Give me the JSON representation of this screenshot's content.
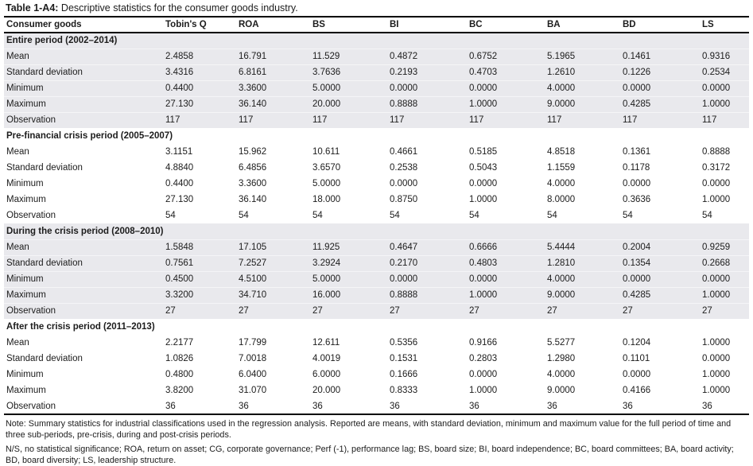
{
  "title": {
    "label": "Table 1-A4:",
    "text": " Descriptive statistics for the consumer goods industry."
  },
  "chart_data": {
    "type": "table",
    "title": "Table 1-A4: Descriptive statistics for the consumer goods industry.",
    "columns": [
      "Consumer goods",
      "Tobin's Q",
      "ROA",
      "BS",
      "BI",
      "BC",
      "BA",
      "BD",
      "LS"
    ],
    "sections": [
      {
        "header": "Entire period (2002–2014)",
        "shaded": true,
        "rows": [
          {
            "label": "Mean",
            "values": [
              "2.4858",
              "16.791",
              "11.529",
              "0.4872",
              "0.6752",
              "5.1965",
              "0.1461",
              "0.9316"
            ]
          },
          {
            "label": "Standard deviation",
            "values": [
              "3.4316",
              "6.8161",
              "3.7636",
              "0.2193",
              "0.4703",
              "1.2610",
              "0.1226",
              "0.2534"
            ]
          },
          {
            "label": "Minimum",
            "values": [
              "0.4400",
              "3.3600",
              "5.0000",
              "0.0000",
              "0.0000",
              "4.0000",
              "0.0000",
              "0.0000"
            ]
          },
          {
            "label": "Maximum",
            "values": [
              "27.130",
              "36.140",
              "20.000",
              "0.8888",
              "1.0000",
              "9.0000",
              "0.4285",
              "1.0000"
            ]
          },
          {
            "label": "Observation",
            "values": [
              "117",
              "117",
              "117",
              "117",
              "117",
              "117",
              "117",
              "117"
            ]
          }
        ]
      },
      {
        "header": "Pre-financial crisis period (2005–2007)",
        "shaded": false,
        "rows": [
          {
            "label": "Mean",
            "values": [
              "3.1151",
              "15.962",
              "10.611",
              "0.4661",
              "0.5185",
              "4.8518",
              "0.1361",
              "0.8888"
            ]
          },
          {
            "label": "Standard deviation",
            "values": [
              "4.8840",
              "6.4856",
              "3.6570",
              "0.2538",
              "0.5043",
              "1.1559",
              "0.1178",
              "0.3172"
            ]
          },
          {
            "label": "Minimum",
            "values": [
              "0.4400",
              "3.3600",
              "5.0000",
              "0.0000",
              "0.0000",
              "4.0000",
              "0.0000",
              "0.0000"
            ]
          },
          {
            "label": "Maximum",
            "values": [
              "27.130",
              "36.140",
              "18.000",
              "0.8750",
              "1.0000",
              "8.0000",
              "0.3636",
              "1.0000"
            ]
          },
          {
            "label": "Observation",
            "values": [
              "54",
              "54",
              "54",
              "54",
              "54",
              "54",
              "54",
              "54"
            ]
          }
        ]
      },
      {
        "header": "During the crisis period (2008–2010)",
        "shaded": true,
        "rows": [
          {
            "label": "Mean",
            "values": [
              "1.5848",
              "17.105",
              "11.925",
              "0.4647",
              "0.6666",
              "5.4444",
              "0.2004",
              "0.9259"
            ]
          },
          {
            "label": "Standard deviation",
            "values": [
              "0.7561",
              "7.2527",
              "3.2924",
              "0.2170",
              "0.4803",
              "1.2810",
              "0.1354",
              "0.2668"
            ]
          },
          {
            "label": "Minimum",
            "values": [
              "0.4500",
              "4.5100",
              "5.0000",
              "0.0000",
              "0.0000",
              "4.0000",
              "0.0000",
              "0.0000"
            ]
          },
          {
            "label": "Maximum",
            "values": [
              "3.3200",
              "34.710",
              "16.000",
              "0.8888",
              "1.0000",
              "9.0000",
              "0.4285",
              "1.0000"
            ]
          },
          {
            "label": "Observation",
            "values": [
              "27",
              "27",
              "27",
              "27",
              "27",
              "27",
              "27",
              "27"
            ]
          }
        ]
      },
      {
        "header": "After the crisis period (2011–2013)",
        "shaded": false,
        "rows": [
          {
            "label": "Mean",
            "values": [
              "2.2177",
              "17.799",
              "12.611",
              "0.5356",
              "0.9166",
              "5.5277",
              "0.1204",
              "1.0000"
            ]
          },
          {
            "label": "Standard deviation",
            "values": [
              "1.0826",
              "7.0018",
              "4.0019",
              "0.1531",
              "0.2803",
              "1.2980",
              "0.1101",
              "0.0000"
            ]
          },
          {
            "label": "Minimum",
            "values": [
              "0.4800",
              "6.0400",
              "6.0000",
              "0.1666",
              "0.0000",
              "4.0000",
              "0.0000",
              "1.0000"
            ]
          },
          {
            "label": "Maximum",
            "values": [
              "3.8200",
              "31.070",
              "20.000",
              "0.8333",
              "1.0000",
              "9.0000",
              "0.4166",
              "1.0000"
            ]
          },
          {
            "label": "Observation",
            "values": [
              "36",
              "36",
              "36",
              "36",
              "36",
              "36",
              "36",
              "36"
            ]
          }
        ]
      }
    ]
  },
  "notes": {
    "note1": "Note: Summary statistics for industrial classifications used in the regression analysis. Reported are means, with standard deviation, minimum and maximum value for the full period of  time and three sub-periods, pre-crisis, during and post-crisis periods.",
    "note2": "N/S, no statistical significance; ROA, return on asset; CG, corporate governance; Perf (-1), performance lag; BS, board size; BI, board independence; BC, board committees; BA, board activity; BD, board diversity; LS, leadership structure."
  },
  "colors": {
    "shaded_row_bg": "#e9e9ed",
    "rule": "#000000",
    "text": "#1c1c1c"
  }
}
